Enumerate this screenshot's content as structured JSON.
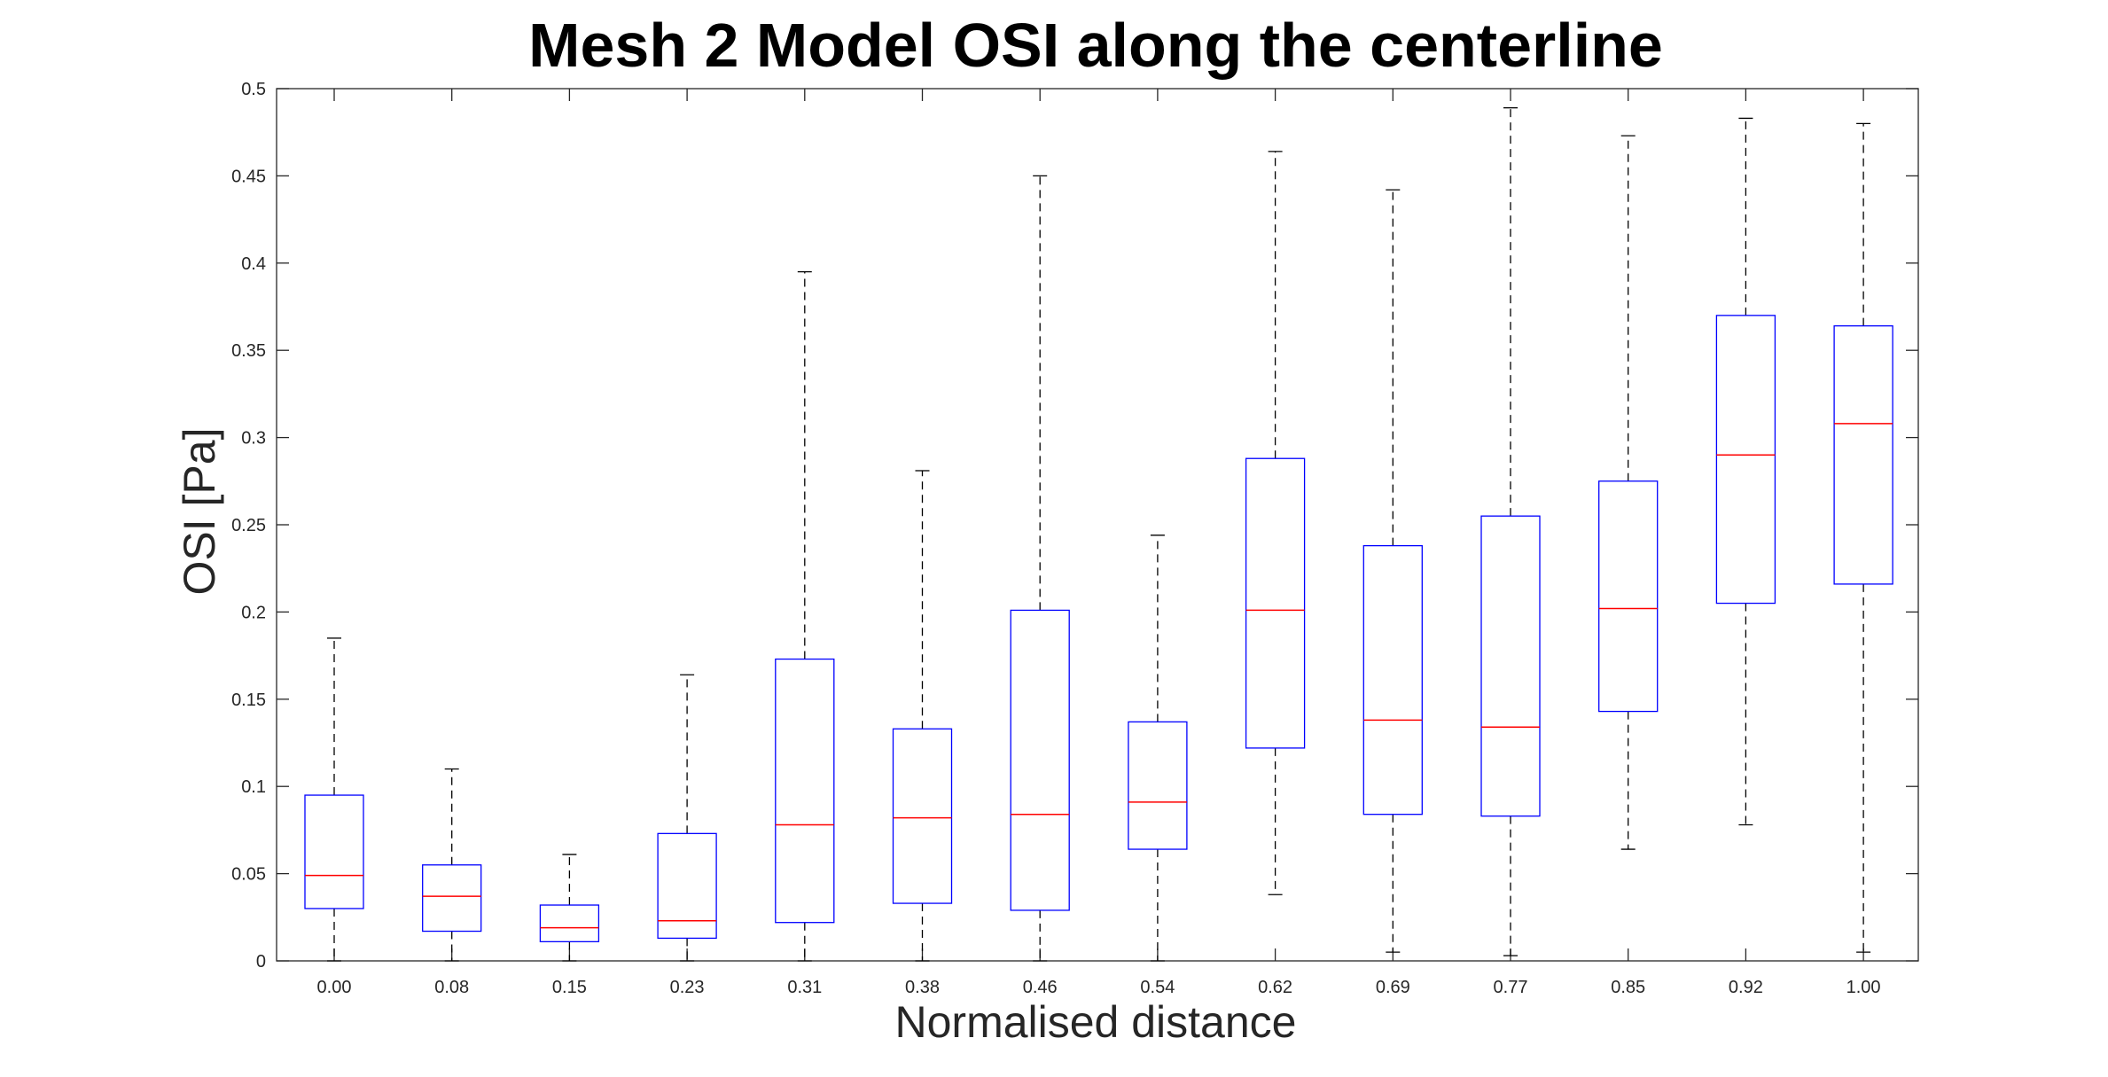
{
  "chart_data": {
    "type": "boxplot",
    "title": "Mesh 2 Model OSI along the centerline",
    "xlabel": "Normalised distance",
    "ylabel": "OSI [Pa]",
    "ylim": [
      0,
      0.5
    ],
    "yticks": [
      "0",
      "0.05",
      "0.1",
      "0.15",
      "0.2",
      "0.25",
      "0.3",
      "0.35",
      "0.4",
      "0.45",
      "0.5"
    ],
    "categories": [
      "0.00",
      "0.08",
      "0.15",
      "0.23",
      "0.31",
      "0.38",
      "0.46",
      "0.54",
      "0.62",
      "0.69",
      "0.77",
      "0.85",
      "0.92",
      "1.00"
    ],
    "boxes": [
      {
        "whisker_low": 0.0,
        "q1": 0.03,
        "median": 0.049,
        "q3": 0.095,
        "whisker_high": 0.185
      },
      {
        "whisker_low": 0.0,
        "q1": 0.017,
        "median": 0.037,
        "q3": 0.055,
        "whisker_high": 0.11
      },
      {
        "whisker_low": 0.0,
        "q1": 0.011,
        "median": 0.019,
        "q3": 0.032,
        "whisker_high": 0.061
      },
      {
        "whisker_low": 0.0,
        "q1": 0.013,
        "median": 0.023,
        "q3": 0.073,
        "whisker_high": 0.164
      },
      {
        "whisker_low": 0.0,
        "q1": 0.022,
        "median": 0.078,
        "q3": 0.173,
        "whisker_high": 0.395
      },
      {
        "whisker_low": 0.0,
        "q1": 0.033,
        "median": 0.082,
        "q3": 0.133,
        "whisker_high": 0.281
      },
      {
        "whisker_low": 0.0,
        "q1": 0.029,
        "median": 0.084,
        "q3": 0.201,
        "whisker_high": 0.45
      },
      {
        "whisker_low": 0.0,
        "q1": 0.064,
        "median": 0.091,
        "q3": 0.137,
        "whisker_high": 0.244
      },
      {
        "whisker_low": 0.038,
        "q1": 0.122,
        "median": 0.201,
        "q3": 0.288,
        "whisker_high": 0.464
      },
      {
        "whisker_low": 0.005,
        "q1": 0.084,
        "median": 0.138,
        "q3": 0.238,
        "whisker_high": 0.442
      },
      {
        "whisker_low": 0.003,
        "q1": 0.083,
        "median": 0.134,
        "q3": 0.255,
        "whisker_high": 0.489
      },
      {
        "whisker_low": 0.064,
        "q1": 0.143,
        "median": 0.202,
        "q3": 0.275,
        "whisker_high": 0.473
      },
      {
        "whisker_low": 0.078,
        "q1": 0.205,
        "median": 0.29,
        "q3": 0.37,
        "whisker_high": 0.483
      },
      {
        "whisker_low": 0.005,
        "q1": 0.216,
        "median": 0.308,
        "q3": 0.364,
        "whisker_high": 0.48
      }
    ],
    "grid": false,
    "colors": {
      "box": "#0000ff",
      "median": "#ff0000",
      "whisker": "#000000",
      "axis": "#262626"
    }
  }
}
